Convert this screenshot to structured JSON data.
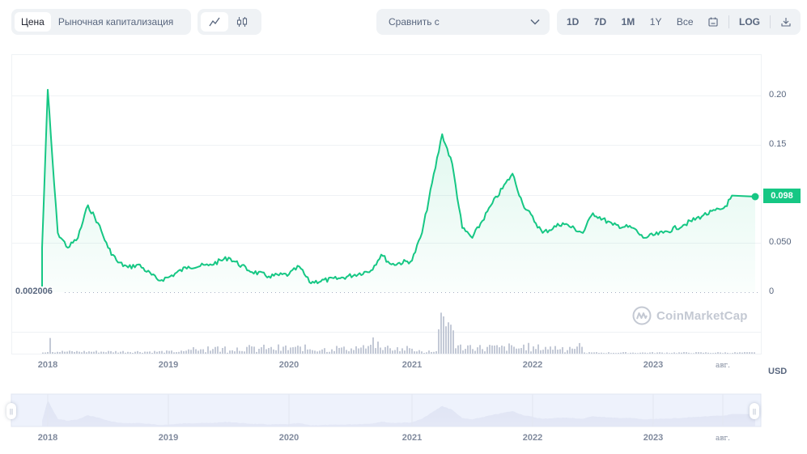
{
  "toolbar": {
    "type_tabs": [
      {
        "label": "Цена",
        "active": true
      },
      {
        "label": "Рыночная капитализация",
        "active": false
      }
    ],
    "chart_type_buttons": [
      {
        "icon": "line-chart-icon",
        "active": true
      },
      {
        "icon": "candlestick-icon",
        "active": false
      }
    ],
    "compare": {
      "label": "Сравнить с",
      "icon": "chevron-down-icon"
    },
    "range_buttons": [
      "1D",
      "7D",
      "1M",
      "1Y",
      "Все"
    ],
    "calendar_icon": "calendar-icon",
    "log_label": "LOG",
    "download_icon": "download-icon"
  },
  "colors": {
    "line": "#16c784",
    "area_fill": "#16c784",
    "volume": "#c3c9d6",
    "grid": "#eff2f5",
    "navigator_bg": "#eef2fc"
  },
  "chart": {
    "current_price_label": "0.098",
    "min_price_label": "0.002006",
    "currency": "USD",
    "watermark": "CoinMarketCap",
    "y_ticks": [
      "0.20",
      "0.15",
      "0.050",
      "0"
    ],
    "x_ticks": [
      "2018",
      "2019",
      "2020",
      "2021",
      "2022",
      "2023",
      "авг."
    ]
  },
  "navigator": {
    "x_ticks": [
      "2018",
      "2019",
      "2020",
      "2021",
      "2022",
      "2023",
      "авг."
    ],
    "left_handle": "||",
    "right_handle": "||"
  },
  "chart_data": {
    "type": "line",
    "title": "",
    "xlabel": "",
    "ylabel": "USD",
    "ylim": [
      0,
      0.24
    ],
    "grid": true,
    "x_tick_labels": [
      "2018",
      "2019",
      "2020",
      "2021",
      "2022",
      "2023",
      "авг."
    ],
    "y_tick_labels": [
      "0",
      "0.050",
      "0.15",
      "0.20"
    ],
    "annotations": [
      {
        "label": "0.098",
        "meaning": "current price"
      },
      {
        "label": "0.002006",
        "meaning": "minimum price"
      }
    ],
    "series": [
      {
        "name": "Price (USD)",
        "points": [
          [
            "2017-11",
            0.002006
          ],
          [
            "2017-12",
            0.045
          ],
          [
            "2018-01",
            0.205
          ],
          [
            "2018-01-20",
            0.11
          ],
          [
            "2018-02",
            0.06
          ],
          [
            "2018-03",
            0.045
          ],
          [
            "2018-04",
            0.055
          ],
          [
            "2018-05",
            0.088
          ],
          [
            "2018-06",
            0.07
          ],
          [
            "2018-07",
            0.045
          ],
          [
            "2018-08",
            0.03
          ],
          [
            "2018-09",
            0.025
          ],
          [
            "2018-10",
            0.028
          ],
          [
            "2018-12",
            0.012
          ],
          [
            "2019-01",
            0.015
          ],
          [
            "2019-03",
            0.026
          ],
          [
            "2019-05",
            0.027
          ],
          [
            "2019-07",
            0.035
          ],
          [
            "2019-09",
            0.022
          ],
          [
            "2019-11",
            0.016
          ],
          [
            "2020-01",
            0.018
          ],
          [
            "2020-02",
            0.026
          ],
          [
            "2020-03",
            0.01
          ],
          [
            "2020-06",
            0.014
          ],
          [
            "2020-09",
            0.022
          ],
          [
            "2020-10",
            0.038
          ],
          [
            "2020-11",
            0.028
          ],
          [
            "2021-01",
            0.032
          ],
          [
            "2021-02",
            0.06
          ],
          [
            "2021-04",
            0.16
          ],
          [
            "2021-05",
            0.13
          ],
          [
            "2021-06",
            0.065
          ],
          [
            "2021-07",
            0.055
          ],
          [
            "2021-09",
            0.09
          ],
          [
            "2021-11",
            0.12
          ],
          [
            "2021-12",
            0.09
          ],
          [
            "2022-02",
            0.06
          ],
          [
            "2022-04",
            0.07
          ],
          [
            "2022-06",
            0.06
          ],
          [
            "2022-07",
            0.08
          ],
          [
            "2022-09",
            0.068
          ],
          [
            "2022-11",
            0.065
          ],
          [
            "2022-12",
            0.055
          ],
          [
            "2023-02",
            0.06
          ],
          [
            "2023-04",
            0.068
          ],
          [
            "2023-06",
            0.078
          ],
          [
            "2023-08",
            0.085
          ],
          [
            "2023-09",
            0.098
          ]
        ]
      }
    ]
  }
}
